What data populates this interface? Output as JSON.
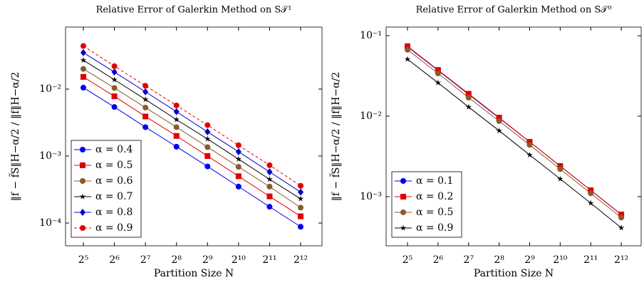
{
  "chart_data": [
    {
      "type": "line",
      "title": "Relative Error of Galerkin Method on S𝒯¹",
      "x_label": "Partition Size N",
      "y_label": "‖f − f̃S‖H−α/2 / ‖f‖H−α/2",
      "log_x": true,
      "log_y": true,
      "legend": "lower left",
      "x": [
        32,
        64,
        128,
        256,
        512,
        1024,
        2048,
        4096
      ],
      "xlim": [
        21.5,
        6600
      ],
      "ylim": [
        4.57e-05,
        0.0843
      ],
      "xticks": [
        {
          "value": 32,
          "label": "2⁵"
        },
        {
          "value": 64,
          "label": "2⁶"
        },
        {
          "value": 128,
          "label": "2⁷"
        },
        {
          "value": 256,
          "label": "2⁸"
        },
        {
          "value": 512,
          "label": "2⁹"
        },
        {
          "value": 1024,
          "label": "2¹⁰"
        },
        {
          "value": 2048,
          "label": "2¹¹"
        },
        {
          "value": 4096,
          "label": "2¹²"
        }
      ],
      "yticks": [
        {
          "value": 0.0001,
          "label": "10⁻⁴"
        },
        {
          "value": 0.001,
          "label": "10⁻³"
        },
        {
          "value": 0.01,
          "label": "10⁻²"
        }
      ],
      "series": [
        {
          "name": "α = 0.4",
          "color": "#0000ee",
          "marker": "circle",
          "values": [
            0.0105,
            0.0054,
            0.0027,
            0.00138,
            0.0007,
            0.00035,
            0.000175,
            8.8e-05
          ]
        },
        {
          "name": "α = 0.5",
          "color": "#e00000",
          "marker": "square",
          "values": [
            0.0152,
            0.0078,
            0.0039,
            0.002,
            0.001,
            0.0005,
            0.00025,
            0.000126
          ]
        },
        {
          "name": "α = 0.6",
          "color": "#8b5a2b",
          "marker": "circle",
          "values": [
            0.02,
            0.0104,
            0.0053,
            0.0027,
            0.00136,
            0.00069,
            0.00035,
            0.00017
          ]
        },
        {
          "name": "α = 0.7",
          "color": "#000000",
          "marker": "star",
          "values": [
            0.027,
            0.0138,
            0.007,
            0.0035,
            0.0018,
            0.0009,
            0.00045,
            0.00023
          ]
        },
        {
          "name": "α = 0.8",
          "color": "#0000cc",
          "marker": "diamond",
          "values": [
            0.035,
            0.018,
            0.0091,
            0.0046,
            0.0023,
            0.00116,
            0.00058,
            0.00029
          ]
        },
        {
          "name": "α = 0.9",
          "color": "#e00000",
          "marker": "circle",
          "dashed": true,
          "values": [
            0.044,
            0.022,
            0.0112,
            0.0057,
            0.0029,
            0.00145,
            0.00073,
            0.00036
          ]
        }
      ]
    },
    {
      "type": "line",
      "title": "Relative Error of Galerkin Method on S𝒯⁰",
      "x_label": "Partition Size N",
      "y_label": "‖f − f̃S‖H−α/2 / ‖f‖H−α/2",
      "log_x": true,
      "log_y": true,
      "legend": "lower left",
      "x": [
        32,
        64,
        128,
        256,
        512,
        1024,
        2048,
        4096
      ],
      "xlim": [
        19.7,
        6430
      ],
      "ylim": [
        0.000245,
        0.128
      ],
      "xticks": [
        {
          "value": 32,
          "label": "2⁵"
        },
        {
          "value": 64,
          "label": "2⁶"
        },
        {
          "value": 128,
          "label": "2⁷"
        },
        {
          "value": 256,
          "label": "2⁸"
        },
        {
          "value": 512,
          "label": "2⁹"
        },
        {
          "value": 1024,
          "label": "2¹⁰"
        },
        {
          "value": 2048,
          "label": "2¹¹"
        },
        {
          "value": 4096,
          "label": "2¹²"
        }
      ],
      "yticks": [
        {
          "value": 0.001,
          "label": "10⁻³"
        },
        {
          "value": 0.01,
          "label": "10⁻²"
        },
        {
          "value": 0.1,
          "label": "10⁻¹"
        }
      ],
      "series": [
        {
          "name": "α = 0.1",
          "color": "#0000ee",
          "marker": "circle",
          "values": [
            0.073,
            0.037,
            0.0187,
            0.0095,
            0.0048,
            0.0024,
            0.0012,
            0.0006
          ]
        },
        {
          "name": "α = 0.2",
          "color": "#e00000",
          "marker": "square",
          "values": [
            0.074,
            0.0375,
            0.019,
            0.0096,
            0.0048,
            0.0024,
            0.0012,
            0.0006
          ]
        },
        {
          "name": "α = 0.5",
          "color": "#8b5a2b",
          "marker": "circle",
          "values": [
            0.067,
            0.034,
            0.017,
            0.0087,
            0.0044,
            0.0022,
            0.0011,
            0.00055
          ]
        },
        {
          "name": "α = 0.9",
          "color": "#000000",
          "marker": "star",
          "values": [
            0.051,
            0.026,
            0.013,
            0.0066,
            0.0033,
            0.00166,
            0.00083,
            0.00041
          ]
        }
      ]
    }
  ]
}
